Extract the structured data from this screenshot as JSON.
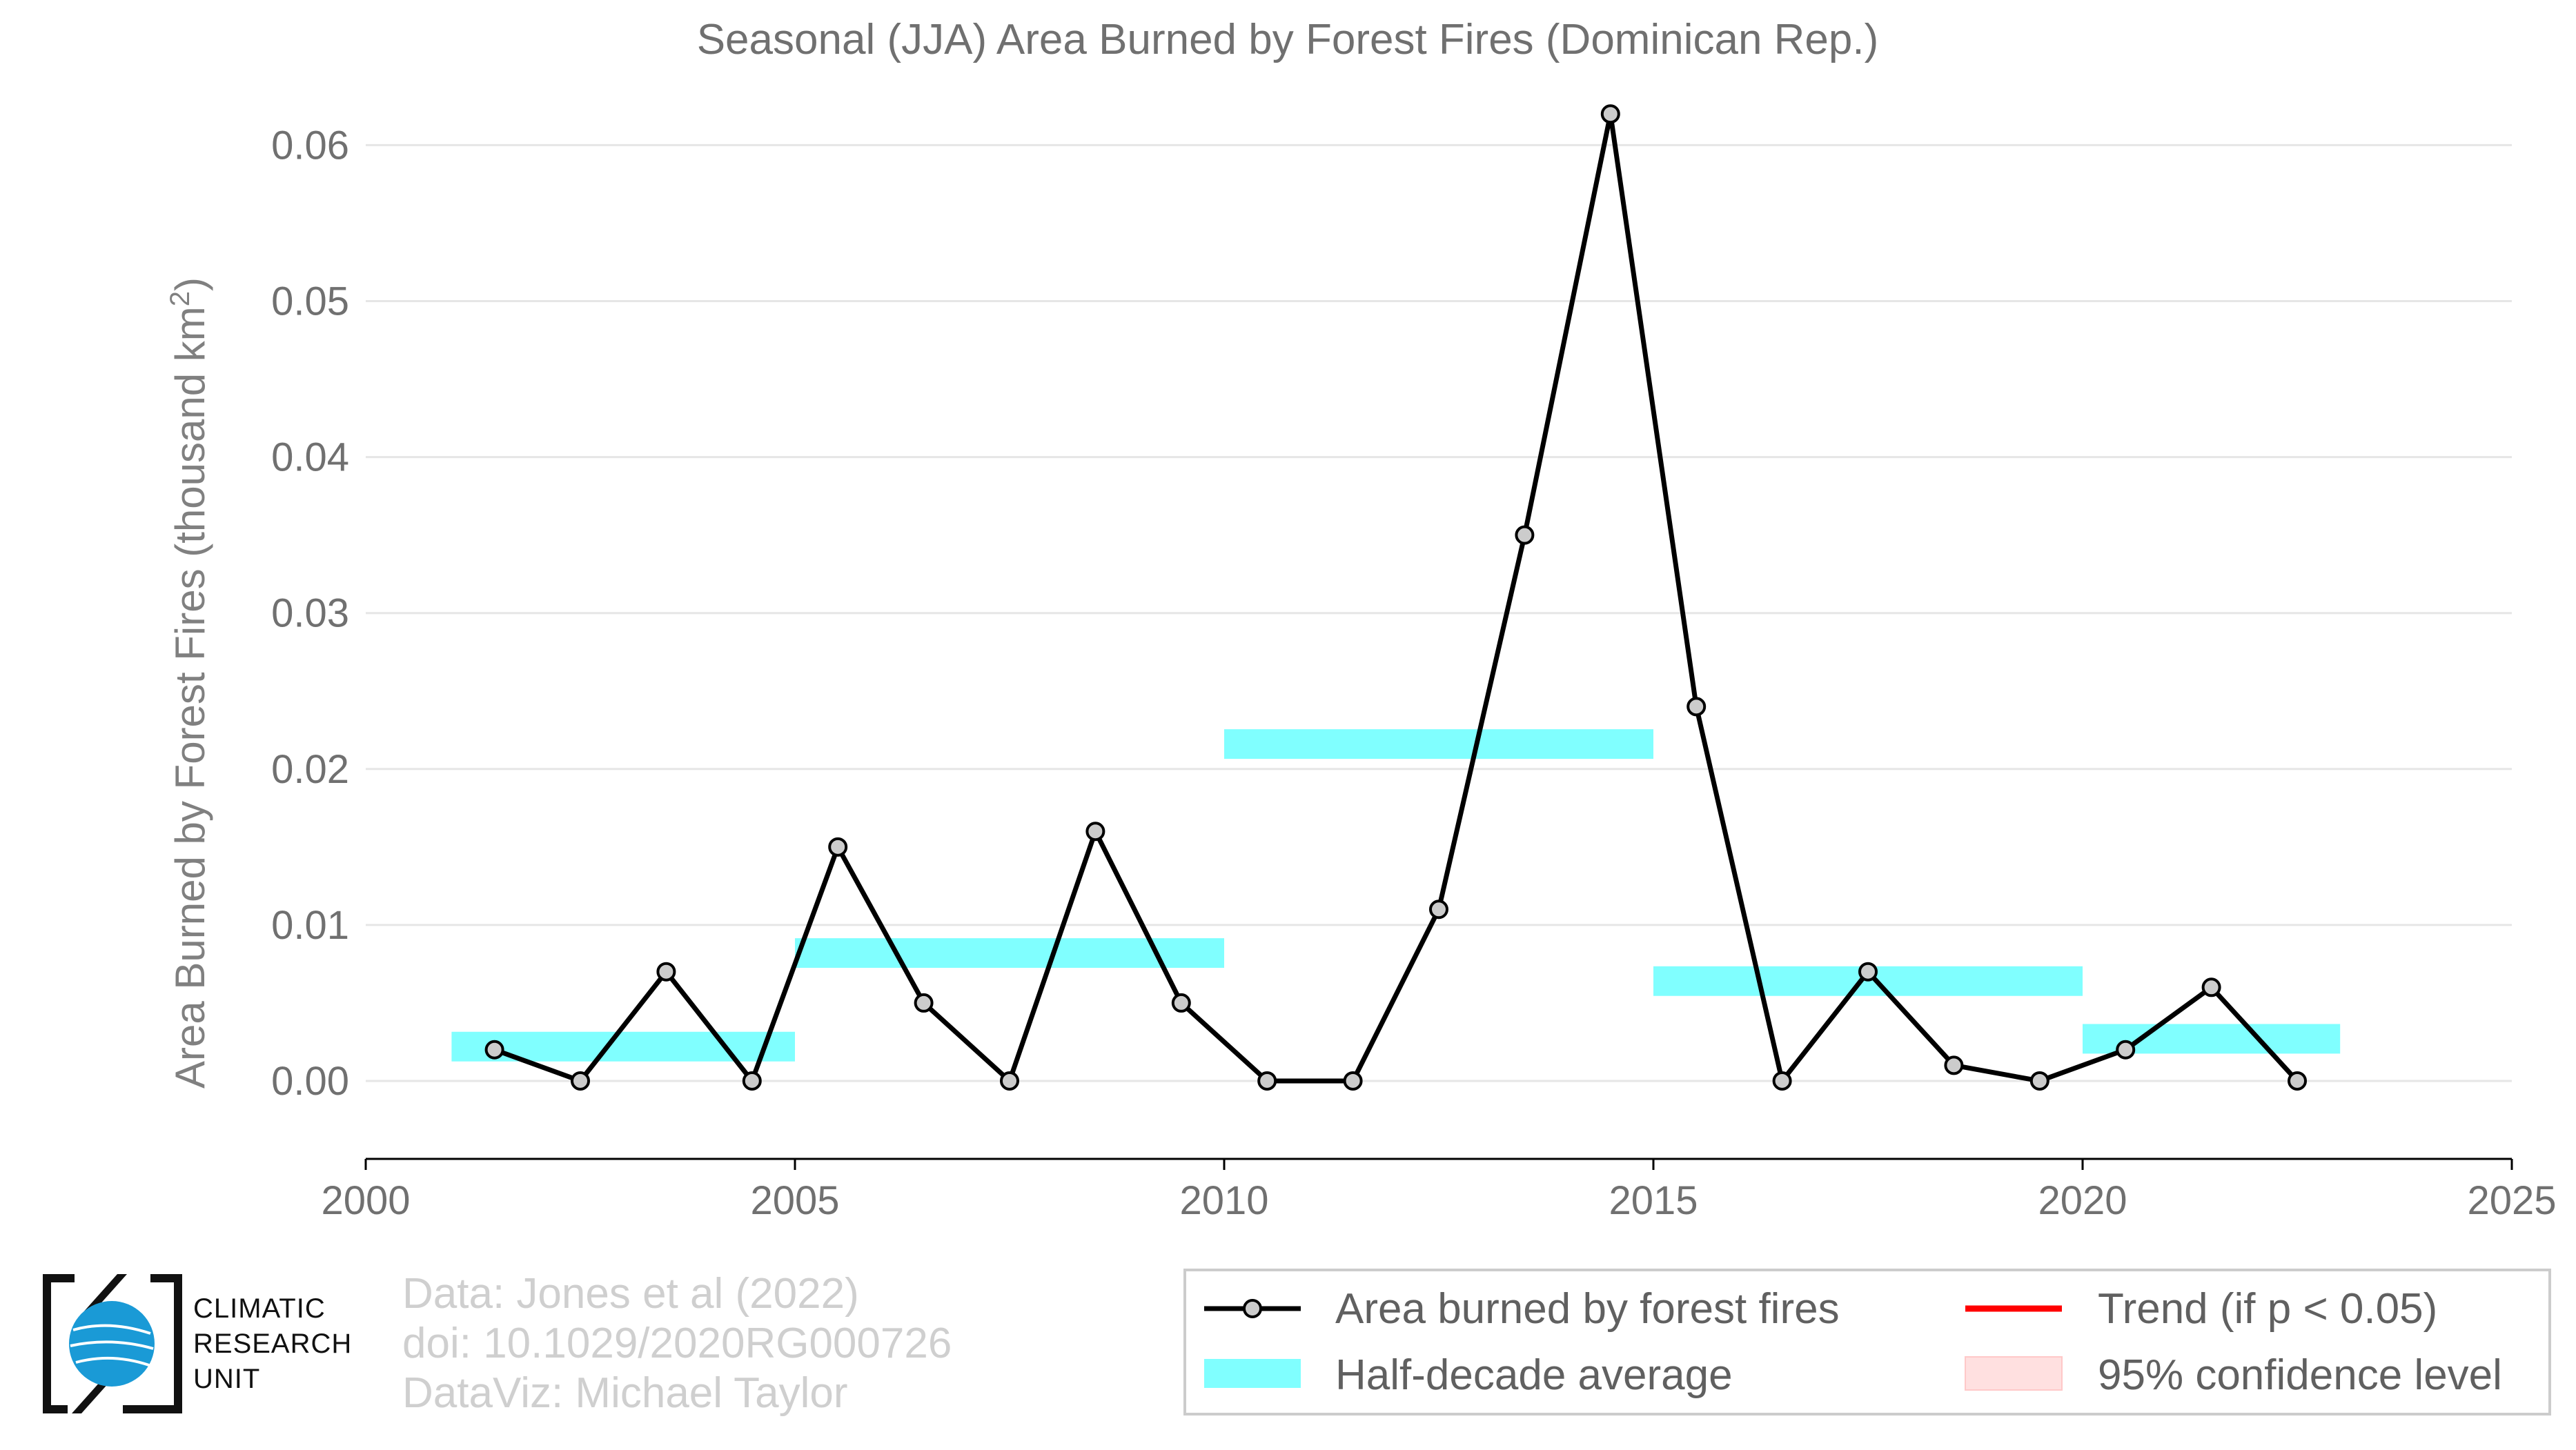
{
  "chart_data": {
    "type": "line",
    "title": "Seasonal (JJA) Area Burned by Forest Fires (Dominican Rep.)",
    "xlabel": "",
    "ylabel": "Area Burned by Forest Fires (thousand km",
    "ylabel_sup": "2",
    "ylabel_end": ")",
    "xlim": [
      2000,
      2025
    ],
    "ylim": [
      -0.005,
      0.064
    ],
    "x_ticks": [
      2000,
      2005,
      2010,
      2015,
      2020,
      2025
    ],
    "x_tick_labels": [
      "2000",
      "2005",
      "2010",
      "2015",
      "2020",
      "2025"
    ],
    "y_ticks": [
      0,
      0.01,
      0.02,
      0.03,
      0.04,
      0.05,
      0.06
    ],
    "y_tick_labels": [
      "0.00",
      "0.01",
      "0.02",
      "0.03",
      "0.04",
      "0.05",
      "0.06"
    ],
    "grid": true,
    "series": [
      {
        "name": "Area burned by forest fires",
        "color": "#000000",
        "marker_fill": "#cccccc",
        "x": [
          2001.5,
          2002.5,
          2003.5,
          2004.5,
          2005.5,
          2006.5,
          2007.5,
          2008.5,
          2009.5,
          2010.5,
          2011.5,
          2012.5,
          2013.5,
          2014.5,
          2015.5,
          2016.5,
          2017.5,
          2018.5,
          2019.5,
          2020.5,
          2021.5,
          2022.5
        ],
        "y": [
          0.002,
          0,
          0.007,
          0,
          0.015,
          0.005,
          0,
          0.016,
          0.005,
          0,
          0,
          0.011,
          0.035,
          0.062,
          0.024,
          0,
          0.007,
          0.001,
          0,
          0.002,
          0.006,
          0
        ]
      }
    ],
    "half_decade_average": {
      "name": "Half-decade average",
      "color": "#80ffff",
      "segments": [
        {
          "x0": 2001,
          "x1": 2005,
          "y": 0.0022
        },
        {
          "x0": 2005,
          "x1": 2010,
          "y": 0.0082
        },
        {
          "x0": 2010,
          "x1": 2015,
          "y": 0.0216
        },
        {
          "x0": 2015,
          "x1": 2020,
          "y": 0.0064
        },
        {
          "x0": 2020,
          "x1": 2023,
          "y": 0.0027
        }
      ]
    },
    "legend": {
      "placement": "bottom-right",
      "items": [
        {
          "label": "Area burned by forest fires",
          "kind": "line-marker",
          "color": "#000000"
        },
        {
          "label": "Trend (if p < 0.05)",
          "kind": "line",
          "color": "#ff0000"
        },
        {
          "label": "Half-decade average",
          "kind": "fill",
          "color": "#80ffff"
        },
        {
          "label": "95% confidence level",
          "kind": "fill",
          "color": "#ffe0e0"
        }
      ]
    }
  },
  "credits": {
    "line1": "Data: Jones et al (2022)",
    "line2": "doi: 10.1029/2020RG000726",
    "line3": "DataViz: Michael Taylor"
  },
  "logo": {
    "line1": "CLIMATIC",
    "line2": "RESEARCH",
    "line3": "UNIT",
    "globe_color": "#1a9ad6"
  }
}
